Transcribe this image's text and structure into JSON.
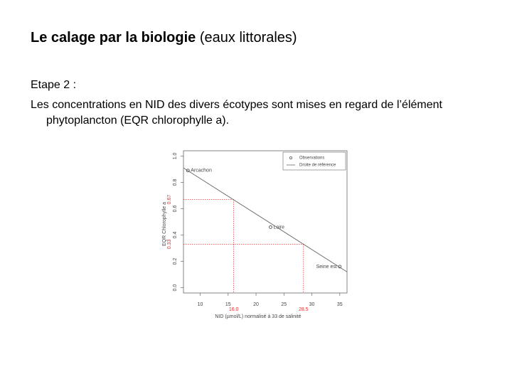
{
  "slide": {
    "title_bold": "Le calage par la biologie",
    "title_rest": "(eaux littorales)",
    "step": "Etape 2 :",
    "text": "Les concentrations en NID des divers écotypes sont mises en regard de l’élément phytoplancton (EQR chlorophylle a)."
  },
  "chart_data": {
    "type": "scatter",
    "xlabel": "NID (µmol/L) normalisé à 33 de salinité",
    "ylabel": "EQR Chlorophylle a",
    "xlim": [
      7,
      36.3
    ],
    "ylim": [
      -0.04,
      1.04
    ],
    "xticks": [
      10,
      15,
      20,
      25,
      30,
      35
    ],
    "yticks": [
      {
        "value": 0,
        "label": "0.0"
      },
      {
        "value": 0.2,
        "label": "0.2"
      },
      {
        "value": 0.4,
        "label": "0.4"
      },
      {
        "value": 0.6,
        "label": "0.6"
      },
      {
        "value": 0.8,
        "label": "0.8"
      },
      {
        "value": 1,
        "label": "1.0"
      }
    ],
    "series": [
      {
        "name": "Observations",
        "color": "#555555",
        "x": [
          7.8,
          22.6,
          35
        ],
        "values": [
          0.89,
          0.46,
          0.16
        ],
        "point_labels": [
          "Arcachon",
          "Loire",
          "Seine est"
        ]
      },
      {
        "name": "Droite de référence",
        "color": "#666666",
        "x": [
          7,
          36.3
        ],
        "values": [
          0.91,
          0.12
        ]
      }
    ],
    "annotations": [
      {
        "x": 16,
        "y": 0.67,
        "x_label": "16.0",
        "y_label": "0.67"
      },
      {
        "x": 28.5,
        "y": 0.33,
        "x_label": "28.5",
        "y_label": "0.33"
      }
    ],
    "annotation_color": "#e03030"
  }
}
